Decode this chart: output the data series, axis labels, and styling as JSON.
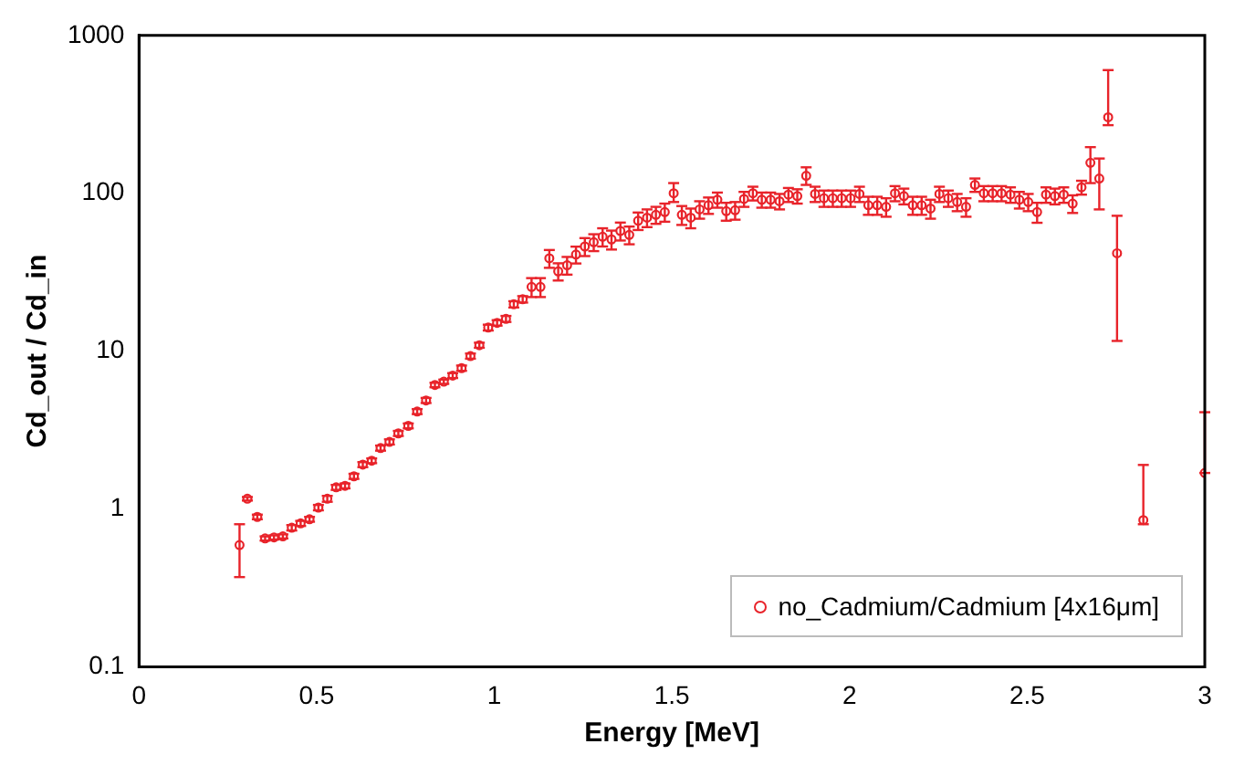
{
  "chart_data": {
    "type": "scatter",
    "xlabel": "Energy [MeV]",
    "ylabel": "Cd_out / Cd_in",
    "log": "y",
    "xlim": [
      0,
      3
    ],
    "ylim": [
      0.1,
      1000
    ],
    "xticks": [
      0,
      0.5,
      1,
      1.5,
      2,
      2.5,
      3
    ],
    "yticks": [
      0.1,
      1,
      10,
      100,
      1000
    ],
    "grid": false,
    "legend": "bottom right",
    "marker": "circle",
    "series": [
      {
        "name": "no_Cadmium/Cadmium [4x16μm]",
        "color": "#e8232a",
        "x": [
          0.283,
          0.305,
          0.333,
          0.355,
          0.38,
          0.405,
          0.43,
          0.455,
          0.48,
          0.505,
          0.53,
          0.555,
          0.58,
          0.605,
          0.63,
          0.655,
          0.68,
          0.705,
          0.73,
          0.758,
          0.783,
          0.808,
          0.833,
          0.858,
          0.883,
          0.908,
          0.933,
          0.958,
          0.983,
          1.008,
          1.033,
          1.055,
          1.08,
          1.105,
          1.13,
          1.155,
          1.18,
          1.205,
          1.23,
          1.255,
          1.28,
          1.305,
          1.33,
          1.355,
          1.38,
          1.405,
          1.43,
          1.455,
          1.48,
          1.505,
          1.528,
          1.553,
          1.578,
          1.603,
          1.628,
          1.653,
          1.678,
          1.703,
          1.728,
          1.753,
          1.778,
          1.803,
          1.828,
          1.853,
          1.878,
          1.903,
          1.928,
          1.953,
          1.978,
          2.003,
          2.028,
          2.053,
          2.078,
          2.103,
          2.128,
          2.153,
          2.178,
          2.203,
          2.228,
          2.253,
          2.278,
          2.303,
          2.328,
          2.353,
          2.378,
          2.403,
          2.428,
          2.453,
          2.478,
          2.503,
          2.528,
          2.553,
          2.578,
          2.603,
          2.628,
          2.653,
          2.678,
          2.703,
          2.728,
          2.753,
          2.827,
          3.0
        ],
        "values": [
          0.59,
          1.16,
          0.89,
          0.65,
          0.66,
          0.67,
          0.76,
          0.81,
          0.86,
          1.02,
          1.16,
          1.37,
          1.4,
          1.61,
          1.91,
          2.02,
          2.43,
          2.66,
          3.01,
          3.36,
          4.14,
          4.87,
          6.1,
          6.4,
          7.0,
          7.8,
          9.3,
          10.9,
          14.1,
          15.1,
          16,
          19.8,
          21.3,
          25.5,
          25.5,
          38.7,
          32,
          35,
          40.9,
          46,
          49,
          53,
          51,
          57.7,
          54.5,
          67,
          70,
          73,
          76,
          100,
          73,
          70,
          79,
          84,
          91,
          77,
          78,
          92,
          100,
          91,
          91,
          89,
          98,
          96,
          129,
          99,
          93,
          93,
          93,
          93,
          99,
          84,
          84,
          82,
          100,
          96,
          84,
          84,
          80,
          99,
          93,
          88,
          82,
          113,
          100,
          100,
          100,
          98,
          91,
          88,
          76,
          98,
          96,
          98,
          86,
          109,
          156,
          124,
          303,
          41.7,
          0.85,
          1.69
        ],
        "errors": [
          [
            0.37,
            0.8
          ],
          0.03,
          0.03,
          0.02,
          0.02,
          0.02,
          0.03,
          0.03,
          0.03,
          0.04,
          0.05,
          0.05,
          0.05,
          0.06,
          0.07,
          0.07,
          0.09,
          0.1,
          0.11,
          0.12,
          0.15,
          0.18,
          0.2,
          0.2,
          0.25,
          0.3,
          0.35,
          0.4,
          0.6,
          0.6,
          0.7,
          0.9,
          1,
          3.5,
          3.5,
          5,
          4,
          4.5,
          5,
          6,
          6,
          7,
          7,
          7.5,
          7,
          8.5,
          9,
          9,
          10,
          [
            88,
            116
          ],
          10,
          10,
          10,
          10,
          10,
          10,
          10,
          10,
          10,
          10,
          10,
          10,
          10,
          10,
          [
            113,
            146
          ],
          11,
          11,
          11,
          11,
          11,
          11,
          11,
          11,
          11,
          11,
          11,
          11,
          11,
          11,
          11,
          11,
          11,
          11,
          11,
          11,
          11,
          11,
          11,
          11,
          11,
          11,
          11,
          11,
          11,
          11,
          11,
          [
            116,
            196
          ],
          [
            79,
            166
          ],
          [
            270,
            603
          ],
          [
            11.6,
            72
          ],
          [
            0.8,
            1.9
          ],
          [
            1.69,
            4.1
          ]
        ]
      }
    ]
  }
}
